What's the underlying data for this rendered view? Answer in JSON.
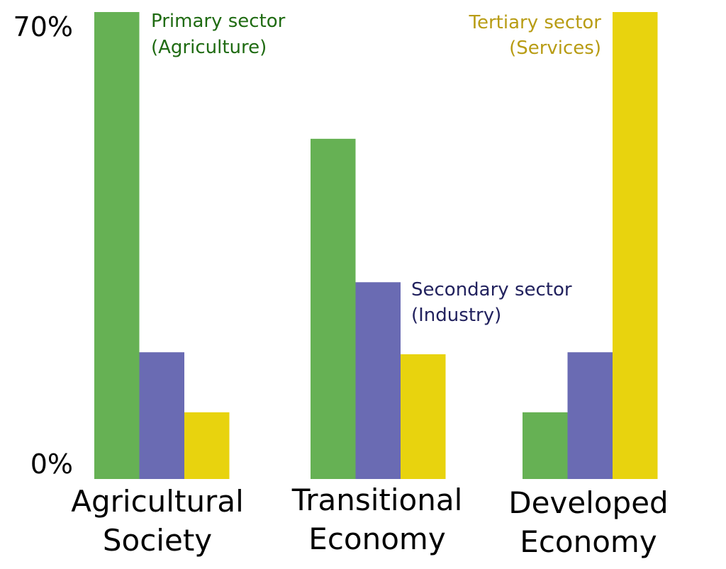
{
  "chart_data": {
    "type": "bar",
    "categories": [
      [
        "Agricultural",
        "Society"
      ],
      [
        "Transitional",
        "Economy"
      ],
      [
        "Developed",
        "Economy"
      ]
    ],
    "series": [
      {
        "name": [
          "Primary sector",
          "(Agriculture)"
        ],
        "color": "#66b154",
        "values": [
          70,
          51,
          10
        ]
      },
      {
        "name": [
          "Secondary sector",
          "(Industry)"
        ],
        "color": "#6a6bb3",
        "values": [
          19,
          29.5,
          19
        ]
      },
      {
        "name": [
          "Tertiary sector",
          "(Services)"
        ],
        "color": "#e8d30e",
        "values": [
          10,
          18.7,
          70
        ]
      }
    ],
    "ylim": [
      0,
      70
    ],
    "yticks": [
      "0%",
      "70%"
    ],
    "grid": false,
    "title": "",
    "xlabel": "",
    "ylabel": ""
  }
}
